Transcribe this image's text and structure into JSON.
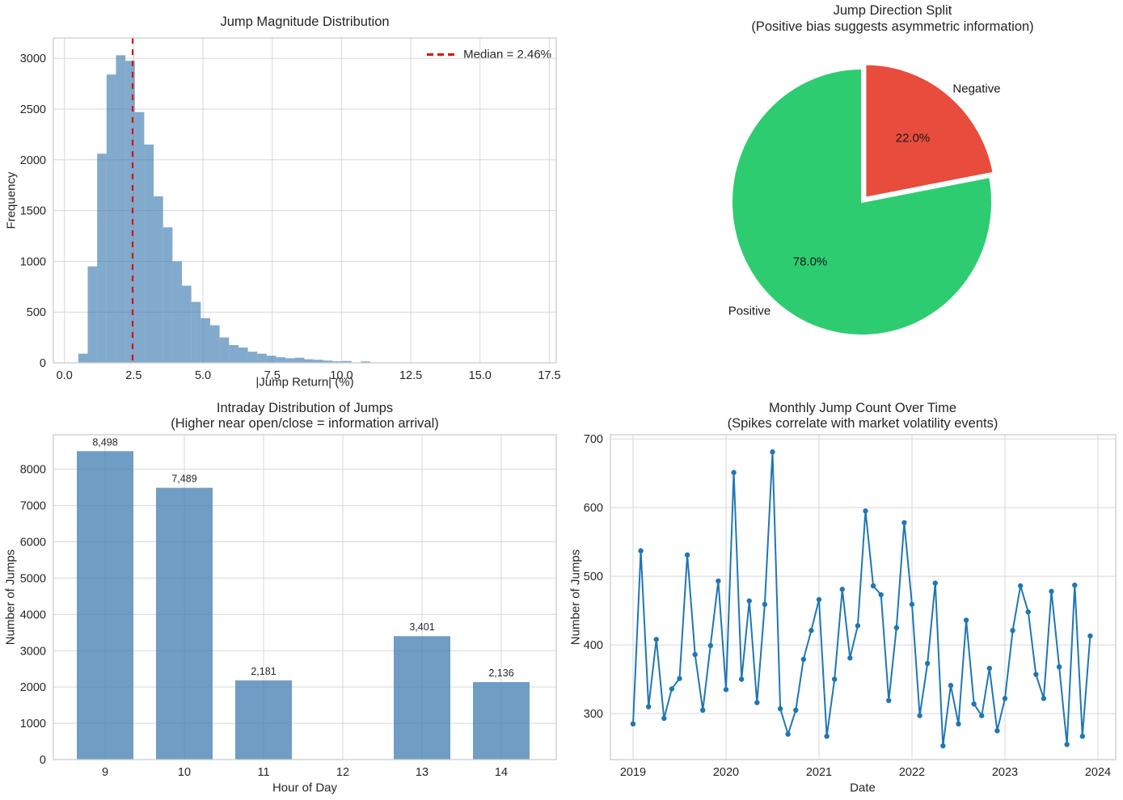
{
  "figure": {
    "background": "#ffffff"
  },
  "chart_data": [
    {
      "id": "jump-magnitude-histogram",
      "type": "bar",
      "title": "Jump Magnitude Distribution",
      "xlabel": "|Jump Return| (%)",
      "ylabel": "Frequency",
      "legend": {
        "label": "Median = 2.46%",
        "line_style": "dashed",
        "color": "#dd1111",
        "position": "upper right"
      },
      "median_value": 2.46,
      "bins": {
        "start": 0.5,
        "width": 0.34
      },
      "frequencies": [
        90,
        950,
        2060,
        2840,
        3030,
        2975,
        2470,
        2150,
        1640,
        1335,
        1000,
        760,
        600,
        440,
        370,
        250,
        175,
        150,
        110,
        90,
        70,
        55,
        45,
        50,
        35,
        30,
        22,
        15,
        18,
        3,
        14
      ],
      "xticks": {
        "values": [
          0,
          2.5,
          5,
          7.5,
          10,
          12.5,
          15,
          17.5
        ],
        "labels": [
          "0.0",
          "2.5",
          "5.0",
          "7.5",
          "10.0",
          "12.5",
          "15.0",
          "17.5"
        ]
      },
      "yticks": {
        "values": [
          0,
          500,
          1000,
          1500,
          2000,
          2500,
          3000
        ],
        "labels": [
          "0",
          "500",
          "1000",
          "1500",
          "2000",
          "2500",
          "3000"
        ]
      },
      "xlim": [
        -0.4,
        17.75
      ],
      "ylim": [
        0,
        3200
      ],
      "bar_color": "rgba(70,130,180,0.68)",
      "grid": true
    },
    {
      "id": "jump-direction-pie",
      "type": "pie",
      "title": "Jump Direction Split",
      "subtitle": "(Positive bias suggests asymmetric information)",
      "start_angle": 90,
      "direction": "clockwise",
      "slices": [
        {
          "label": "Negative",
          "value_pct": 22.0,
          "pct_label": "22.0%",
          "color": "#e74c3c",
          "exploded": true
        },
        {
          "label": "Positive",
          "value_pct": 78.0,
          "pct_label": "78.0%",
          "color": "#2ecc71",
          "exploded": false
        }
      ]
    },
    {
      "id": "intraday-distribution-bar",
      "type": "bar",
      "title": "Intraday Distribution of Jumps",
      "subtitle": "(Higher near open/close = information arrival)",
      "xlabel": "Hour of Day",
      "ylabel": "Number of Jumps",
      "categories": [
        "9",
        "10",
        "11",
        "12",
        "13",
        "14"
      ],
      "values": [
        8498,
        7489,
        2181,
        0,
        3401,
        2136
      ],
      "value_labels": [
        "8,498",
        "7,489",
        "2,181",
        "",
        "3,401",
        "2,136"
      ],
      "yticks": {
        "values": [
          0,
          1000,
          2000,
          3000,
          4000,
          5000,
          6000,
          7000,
          8000
        ],
        "labels": [
          "0",
          "1000",
          "2000",
          "3000",
          "4000",
          "5000",
          "6000",
          "7000",
          "8000"
        ]
      },
      "ylim": [
        0,
        8950
      ],
      "bar_color": "rgba(70,130,180,0.78)",
      "grid": true
    },
    {
      "id": "monthly-jump-count-line",
      "type": "line",
      "title": "Monthly Jump Count Over Time",
      "subtitle": "(Spikes correlate with market volatility events)",
      "xlabel": "Date",
      "ylabel": "Number of Jumps",
      "x_start": "2019-01",
      "x_frequency": "monthly",
      "values": [
        285,
        537,
        310,
        408,
        293,
        336,
        351,
        531,
        386,
        305,
        399,
        493,
        335,
        651,
        350,
        464,
        316,
        459,
        681,
        307,
        270,
        305,
        379,
        421,
        466,
        267,
        350,
        481,
        381,
        428,
        595,
        486,
        473,
        319,
        425,
        578,
        459,
        297,
        373,
        490,
        253,
        341,
        285,
        436,
        314,
        297,
        366,
        275,
        322,
        421,
        486,
        448,
        357,
        322,
        478,
        368,
        255,
        487,
        267,
        413
      ],
      "xticks": {
        "month_index": [
          0,
          12,
          24,
          36,
          48,
          60
        ],
        "labels": [
          "2019",
          "2020",
          "2021",
          "2022",
          "2023",
          "2024"
        ]
      },
      "yticks": {
        "values": [
          300,
          400,
          500,
          600,
          700
        ],
        "labels": [
          "300",
          "400",
          "500",
          "600",
          "700"
        ]
      },
      "ylim": [
        233,
        706
      ],
      "line_color": "#1f77b4",
      "marker": "circle",
      "grid": true
    }
  ]
}
